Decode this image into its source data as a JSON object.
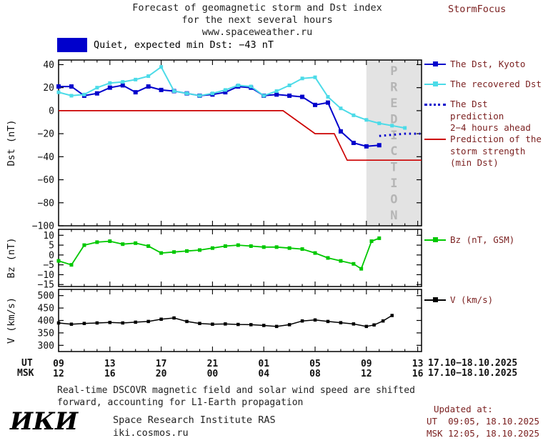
{
  "header": {
    "title_line1": "Forecast of geomagnetic storm and Dst index",
    "title_line2": "for the next several hours",
    "title_line3": "www.spaceweather.ru",
    "brand": "StormFocus"
  },
  "status": {
    "label": "Quiet, expected min Dst: −43 nT",
    "swatch_color": "#0000cc"
  },
  "legends": {
    "dst_kyoto": "The Dst, Kyoto",
    "recovered": "The recovered Dst",
    "prediction_l1": "The Dst prediction",
    "prediction_l2": "2−4 hours ahead",
    "storm_l1": "Prediction of the",
    "storm_l2": "storm strength",
    "storm_l3": "(min Dst)",
    "bz": "Bz (nT, GSM)",
    "v": "V (km/s)"
  },
  "colors": {
    "dst_kyoto": "#0000cc",
    "recovered_dst": "#4cdbe8",
    "dst_prediction": "#0000cc",
    "storm_prediction": "#cc0000",
    "bz": "#00c800",
    "v": "#000000",
    "prediction_band": "#e3e3e3",
    "accent_text": "#7a1f1f"
  },
  "xaxis": {
    "ut_label": "UT",
    "msk_label": "MSK",
    "ut_date": "17.10−18.10.2025",
    "msk_date": "17.10−18.10.2025"
  },
  "footer": {
    "note_line1": "Real-time DSCOVR magnetic field and solar wind speed are shifted",
    "note_line2": "forward, accounting for L1-Earth propagation",
    "logo": "ИКИ",
    "institute": "Space Research Institute RAS",
    "site": "iki.cosmos.ru",
    "updated_label": "Updated at:",
    "updated_ut": "UT  09:05, 18.10.2025",
    "updated_msk": "MSK 12:05, 18.10.2025"
  },
  "chart_data": {
    "type": "line",
    "title": "Forecast of geomagnetic storm and Dst index for the next several hours",
    "x_unit": "hours UT since 17.10.2025 00:00",
    "xlim": [
      9,
      37.3
    ],
    "xticks": {
      "hours": [
        9,
        13,
        17,
        21,
        25,
        29,
        33,
        37
      ],
      "ut_labels": [
        "09",
        "13",
        "17",
        "21",
        "01",
        "05",
        "09",
        "13"
      ],
      "msk_labels": [
        "12",
        "16",
        "20",
        "00",
        "04",
        "08",
        "12",
        "16"
      ]
    },
    "prediction_band": {
      "start_hour": 33,
      "label": "PREDICTION"
    },
    "panels": [
      {
        "id": "dst",
        "ylabel": "Dst (nT)",
        "ylim": [
          -100,
          44
        ],
        "yticks": [
          40,
          20,
          0,
          -20,
          -40,
          -60,
          -80,
          -100
        ],
        "band": true,
        "series": [
          {
            "name": "The Dst, Kyoto",
            "color": "#0000cc",
            "marker": "square",
            "marker_size": 6,
            "width": 2,
            "points": [
              [
                9,
                21
              ],
              [
                10,
                21
              ],
              [
                11,
                13
              ],
              [
                12,
                15
              ],
              [
                13,
                20
              ],
              [
                14,
                22
              ],
              [
                15,
                16
              ],
              [
                16,
                21
              ],
              [
                17,
                18
              ],
              [
                18,
                17
              ],
              [
                19,
                15
              ],
              [
                20,
                13
              ],
              [
                21,
                14
              ],
              [
                22,
                16
              ],
              [
                23,
                21
              ],
              [
                24,
                20
              ],
              [
                25,
                13
              ],
              [
                26,
                14
              ],
              [
                27,
                13
              ],
              [
                28,
                12
              ],
              [
                29,
                5
              ],
              [
                30,
                7
              ],
              [
                31,
                -18
              ],
              [
                32,
                -28
              ],
              [
                33,
                -31
              ],
              [
                34,
                -30
              ]
            ]
          },
          {
            "name": "The recovered Dst",
            "color": "#4cdbe8",
            "marker": "square",
            "marker_size": 5,
            "width": 2,
            "points": [
              [
                9,
                16
              ],
              [
                10,
                13
              ],
              [
                11,
                14
              ],
              [
                12,
                20
              ],
              [
                13,
                24
              ],
              [
                14,
                25
              ],
              [
                15,
                27
              ],
              [
                16,
                30
              ],
              [
                17,
                38
              ],
              [
                18,
                17
              ],
              [
                19,
                15
              ],
              [
                20,
                13
              ],
              [
                21,
                15
              ],
              [
                22,
                18
              ],
              [
                23,
                22
              ],
              [
                24,
                21
              ],
              [
                25,
                13
              ],
              [
                26,
                17
              ],
              [
                27,
                22
              ],
              [
                28,
                28
              ],
              [
                29,
                29
              ],
              [
                30,
                12
              ],
              [
                31,
                2
              ],
              [
                32,
                -4
              ],
              [
                33,
                -8
              ],
              [
                34,
                -11
              ],
              [
                35,
                -13
              ],
              [
                36,
                -15
              ]
            ]
          },
          {
            "name": "The Dst prediction 2−4 hours ahead",
            "color": "#0000cc",
            "line": "dotted",
            "width": 3,
            "points": [
              [
                34,
                -22
              ],
              [
                35,
                -21
              ],
              [
                36,
                -20
              ],
              [
                37.2,
                -20
              ]
            ]
          },
          {
            "name": "Prediction of the storm strength (min Dst)",
            "color": "#cc0000",
            "width": 1.7,
            "points": [
              [
                9,
                0
              ],
              [
                26.5,
                0
              ],
              [
                29,
                -20
              ],
              [
                30.5,
                -20
              ],
              [
                31.5,
                -43
              ],
              [
                37.3,
                -43
              ]
            ]
          }
        ]
      },
      {
        "id": "bz",
        "ylabel": "Bz (nT)",
        "ylim": [
          -16,
          13
        ],
        "yticks": [
          10,
          5,
          0,
          -5,
          -10,
          -15
        ],
        "band": false,
        "series": [
          {
            "name": "Bz (nT, GSM)",
            "color": "#00c800",
            "marker": "square",
            "marker_size": 5,
            "width": 1.8,
            "points": [
              [
                9,
                -3
              ],
              [
                10,
                -5
              ],
              [
                11,
                5
              ],
              [
                12,
                6.5
              ],
              [
                13,
                7
              ],
              [
                14,
                5.5
              ],
              [
                15,
                6
              ],
              [
                16,
                4.5
              ],
              [
                17,
                1
              ],
              [
                18,
                1.5
              ],
              [
                19,
                2
              ],
              [
                20,
                2.5
              ],
              [
                21,
                3.5
              ],
              [
                22,
                4.5
              ],
              [
                23,
                5
              ],
              [
                24,
                4.5
              ],
              [
                25,
                4
              ],
              [
                26,
                4
              ],
              [
                27,
                3.5
              ],
              [
                28,
                3
              ],
              [
                29,
                1
              ],
              [
                30,
                -1.5
              ],
              [
                31,
                -3
              ],
              [
                32,
                -4.5
              ],
              [
                32.6,
                -7
              ],
              [
                33.4,
                7
              ],
              [
                34,
                8.5
              ]
            ]
          }
        ]
      },
      {
        "id": "v",
        "ylabel": "V (km/s)",
        "ylim": [
          275,
          525
        ],
        "yticks": [
          500,
          450,
          400,
          350,
          300
        ],
        "band": false,
        "series": [
          {
            "name": "V (km/s)",
            "color": "#000000",
            "marker": "square",
            "marker_size": 4.5,
            "width": 1.5,
            "points": [
              [
                9,
                390
              ],
              [
                10,
                385
              ],
              [
                11,
                388
              ],
              [
                12,
                390
              ],
              [
                13,
                392
              ],
              [
                14,
                390
              ],
              [
                15,
                393
              ],
              [
                16,
                396
              ],
              [
                17,
                405
              ],
              [
                18,
                410
              ],
              [
                19,
                396
              ],
              [
                20,
                388
              ],
              [
                21,
                385
              ],
              [
                22,
                386
              ],
              [
                23,
                384
              ],
              [
                24,
                383
              ],
              [
                25,
                380
              ],
              [
                26,
                376
              ],
              [
                27,
                383
              ],
              [
                28,
                398
              ],
              [
                29,
                402
              ],
              [
                30,
                396
              ],
              [
                31,
                391
              ],
              [
                32,
                386
              ],
              [
                33,
                376
              ],
              [
                33.6,
                382
              ],
              [
                34.3,
                398
              ],
              [
                35,
                420
              ]
            ]
          }
        ]
      }
    ]
  }
}
